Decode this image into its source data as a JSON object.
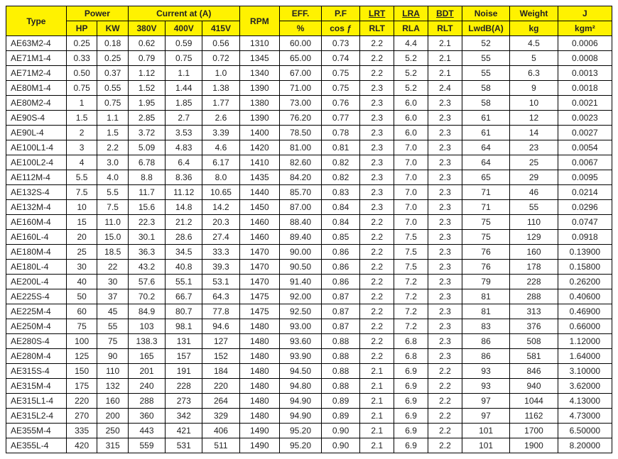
{
  "header": {
    "type": "Type",
    "power": "Power",
    "hp": "HP",
    "kw": "KW",
    "current_at": "Current at (A)",
    "v380": "380V",
    "v400": "400V",
    "v415": "415V",
    "rpm": "RPM",
    "eff": "EFF.",
    "eff_sub": "%",
    "pf": "P.F",
    "pf_sub": "cos ƒ",
    "lrt_top": "LRT",
    "lrt_bot": "RLT",
    "lra_top": "LRA",
    "lra_bot": "RLA",
    "bdt_top": "BDT",
    "bdt_bot": "RLT",
    "noise": "Noise",
    "noise_sub": "LwdB(A)",
    "weight": "Weight",
    "weight_sub": "kg",
    "j": "J",
    "j_sub": "kgm²"
  },
  "widths": {
    "type": 78,
    "hp": 40,
    "kw": 40,
    "v380": 48,
    "v400": 48,
    "v415": 48,
    "rpm": 52,
    "eff": 54,
    "pf": 50,
    "lrt": 44,
    "lra": 44,
    "bdt": 44,
    "noise": 62,
    "weight": 62,
    "j": 70
  },
  "rows": [
    [
      "AE63M2-4",
      "0.25",
      "0.18",
      "0.62",
      "0.59",
      "0.56",
      "1310",
      "60.00",
      "0.73",
      "2.2",
      "4.4",
      "2.1",
      "52",
      "4.5",
      "0.0006"
    ],
    [
      "AE71M1-4",
      "0.33",
      "0.25",
      "0.79",
      "0.75",
      "0.72",
      "1345",
      "65.00",
      "0.74",
      "2.2",
      "5.2",
      "2.1",
      "55",
      "5",
      "0.0008"
    ],
    [
      "AE71M2-4",
      "0.50",
      "0.37",
      "1.12",
      "1.1",
      "1.0",
      "1340",
      "67.00",
      "0.75",
      "2.2",
      "5.2",
      "2.1",
      "55",
      "6.3",
      "0.0013"
    ],
    [
      "AE80M1-4",
      "0.75",
      "0.55",
      "1.52",
      "1.44",
      "1.38",
      "1390",
      "71.00",
      "0.75",
      "2.3",
      "5.2",
      "2.4",
      "58",
      "9",
      "0.0018"
    ],
    [
      "AE80M2-4",
      "1",
      "0.75",
      "1.95",
      "1.85",
      "1.77",
      "1380",
      "73.00",
      "0.76",
      "2.3",
      "6.0",
      "2.3",
      "58",
      "10",
      "0.0021"
    ],
    [
      "AE90S-4",
      "1.5",
      "1.1",
      "2.85",
      "2.7",
      "2.6",
      "1390",
      "76.20",
      "0.77",
      "2.3",
      "6.0",
      "2.3",
      "61",
      "12",
      "0.0023"
    ],
    [
      "AE90L-4",
      "2",
      "1.5",
      "3.72",
      "3.53",
      "3.39",
      "1400",
      "78.50",
      "0.78",
      "2.3",
      "6.0",
      "2.3",
      "61",
      "14",
      "0.0027"
    ],
    [
      "AE100L1-4",
      "3",
      "2.2",
      "5.09",
      "4.83",
      "4.6",
      "1420",
      "81.00",
      "0.81",
      "2.3",
      "7.0",
      "2.3",
      "64",
      "23",
      "0.0054"
    ],
    [
      "AE100L2-4",
      "4",
      "3.0",
      "6.78",
      "6.4",
      "6.17",
      "1410",
      "82.60",
      "0.82",
      "2.3",
      "7.0",
      "2.3",
      "64",
      "25",
      "0.0067"
    ],
    [
      "AE112M-4",
      "5.5",
      "4.0",
      "8.8",
      "8.36",
      "8.0",
      "1435",
      "84.20",
      "0.82",
      "2.3",
      "7.0",
      "2.3",
      "65",
      "29",
      "0.0095"
    ],
    [
      "AE132S-4",
      "7.5",
      "5.5",
      "11.7",
      "11.12",
      "10.65",
      "1440",
      "85.70",
      "0.83",
      "2.3",
      "7.0",
      "2.3",
      "71",
      "46",
      "0.0214"
    ],
    [
      "AE132M-4",
      "10",
      "7.5",
      "15.6",
      "14.8",
      "14.2",
      "1450",
      "87.00",
      "0.84",
      "2.3",
      "7.0",
      "2.3",
      "71",
      "55",
      "0.0296"
    ],
    [
      "AE160M-4",
      "15",
      "11.0",
      "22.3",
      "21.2",
      "20.3",
      "1460",
      "88.40",
      "0.84",
      "2.2",
      "7.0",
      "2.3",
      "75",
      "110",
      "0.0747"
    ],
    [
      "AE160L-4",
      "20",
      "15.0",
      "30.1",
      "28.6",
      "27.4",
      "1460",
      "89.40",
      "0.85",
      "2.2",
      "7.5",
      "2.3",
      "75",
      "129",
      "0.0918"
    ],
    [
      "AE180M-4",
      "25",
      "18.5",
      "36.3",
      "34.5",
      "33.3",
      "1470",
      "90.00",
      "0.86",
      "2.2",
      "7.5",
      "2.3",
      "76",
      "160",
      "0.13900"
    ],
    [
      "AE180L-4",
      "30",
      "22",
      "43.2",
      "40.8",
      "39.3",
      "1470",
      "90.50",
      "0.86",
      "2.2",
      "7.5",
      "2.3",
      "76",
      "178",
      "0.15800"
    ],
    [
      "AE200L-4",
      "40",
      "30",
      "57.6",
      "55.1",
      "53.1",
      "1470",
      "91.40",
      "0.86",
      "2.2",
      "7.2",
      "2.3",
      "79",
      "228",
      "0.26200"
    ],
    [
      "AE225S-4",
      "50",
      "37",
      "70.2",
      "66.7",
      "64.3",
      "1475",
      "92.00",
      "0.87",
      "2.2",
      "7.2",
      "2.3",
      "81",
      "288",
      "0.40600"
    ],
    [
      "AE225M-4",
      "60",
      "45",
      "84.9",
      "80.7",
      "77.8",
      "1475",
      "92.50",
      "0.87",
      "2.2",
      "7.2",
      "2.3",
      "81",
      "313",
      "0.46900"
    ],
    [
      "AE250M-4",
      "75",
      "55",
      "103",
      "98.1",
      "94.6",
      "1480",
      "93.00",
      "0.87",
      "2.2",
      "7.2",
      "2.3",
      "83",
      "376",
      "0.66000"
    ],
    [
      "AE280S-4",
      "100",
      "75",
      "138.3",
      "131",
      "127",
      "1480",
      "93.60",
      "0.88",
      "2.2",
      "6.8",
      "2.3",
      "86",
      "508",
      "1.12000"
    ],
    [
      "AE280M-4",
      "125",
      "90",
      "165",
      "157",
      "152",
      "1480",
      "93.90",
      "0.88",
      "2.2",
      "6.8",
      "2.3",
      "86",
      "581",
      "1.64000"
    ],
    [
      "AE315S-4",
      "150",
      "110",
      "201",
      "191",
      "184",
      "1480",
      "94.50",
      "0.88",
      "2.1",
      "6.9",
      "2.2",
      "93",
      "846",
      "3.10000"
    ],
    [
      "AE315M-4",
      "175",
      "132",
      "240",
      "228",
      "220",
      "1480",
      "94.80",
      "0.88",
      "2.1",
      "6.9",
      "2.2",
      "93",
      "940",
      "3.62000"
    ],
    [
      "AE315L1-4",
      "220",
      "160",
      "288",
      "273",
      "264",
      "1480",
      "94.90",
      "0.89",
      "2.1",
      "6.9",
      "2.2",
      "97",
      "1044",
      "4.13000"
    ],
    [
      "AE315L2-4",
      "270",
      "200",
      "360",
      "342",
      "329",
      "1480",
      "94.90",
      "0.89",
      "2.1",
      "6.9",
      "2.2",
      "97",
      "1162",
      "4.73000"
    ],
    [
      "AE355M-4",
      "335",
      "250",
      "443",
      "421",
      "406",
      "1490",
      "95.20",
      "0.90",
      "2.1",
      "6.9",
      "2.2",
      "101",
      "1700",
      "6.50000"
    ],
    [
      "AE355L-4",
      "420",
      "315",
      "559",
      "531",
      "511",
      "1490",
      "95.20",
      "0.90",
      "2.1",
      "6.9",
      "2.2",
      "101",
      "1900",
      "8.20000"
    ]
  ]
}
